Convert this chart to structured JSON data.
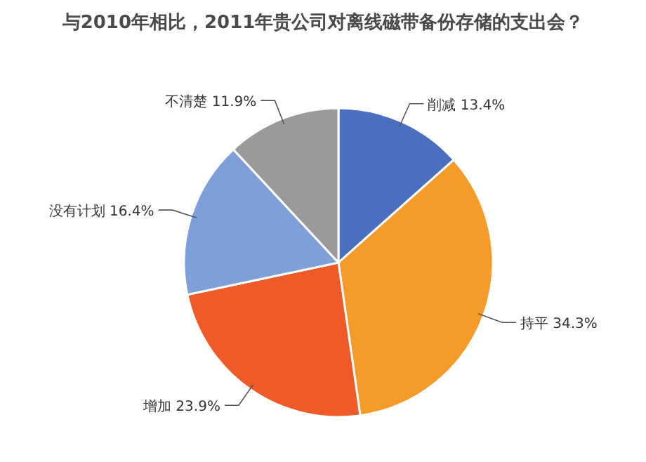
{
  "chart_data": {
    "type": "pie",
    "title": "与2010年相比，2011年贵公司对离线磁带备份存储的支出会？",
    "categories": [
      "削减",
      "持平",
      "增加",
      "没有计划",
      "不清楚"
    ],
    "values": [
      13.4,
      34.3,
      23.9,
      16.4,
      11.9
    ],
    "value_labels": [
      "13.4%",
      "34.3%",
      "23.9%",
      "16.4%",
      "11.9%"
    ],
    "colors": [
      "#4a6fbf",
      "#f59b2a",
      "#ee5a28",
      "#7f9fd8",
      "#9a9a9a"
    ]
  }
}
